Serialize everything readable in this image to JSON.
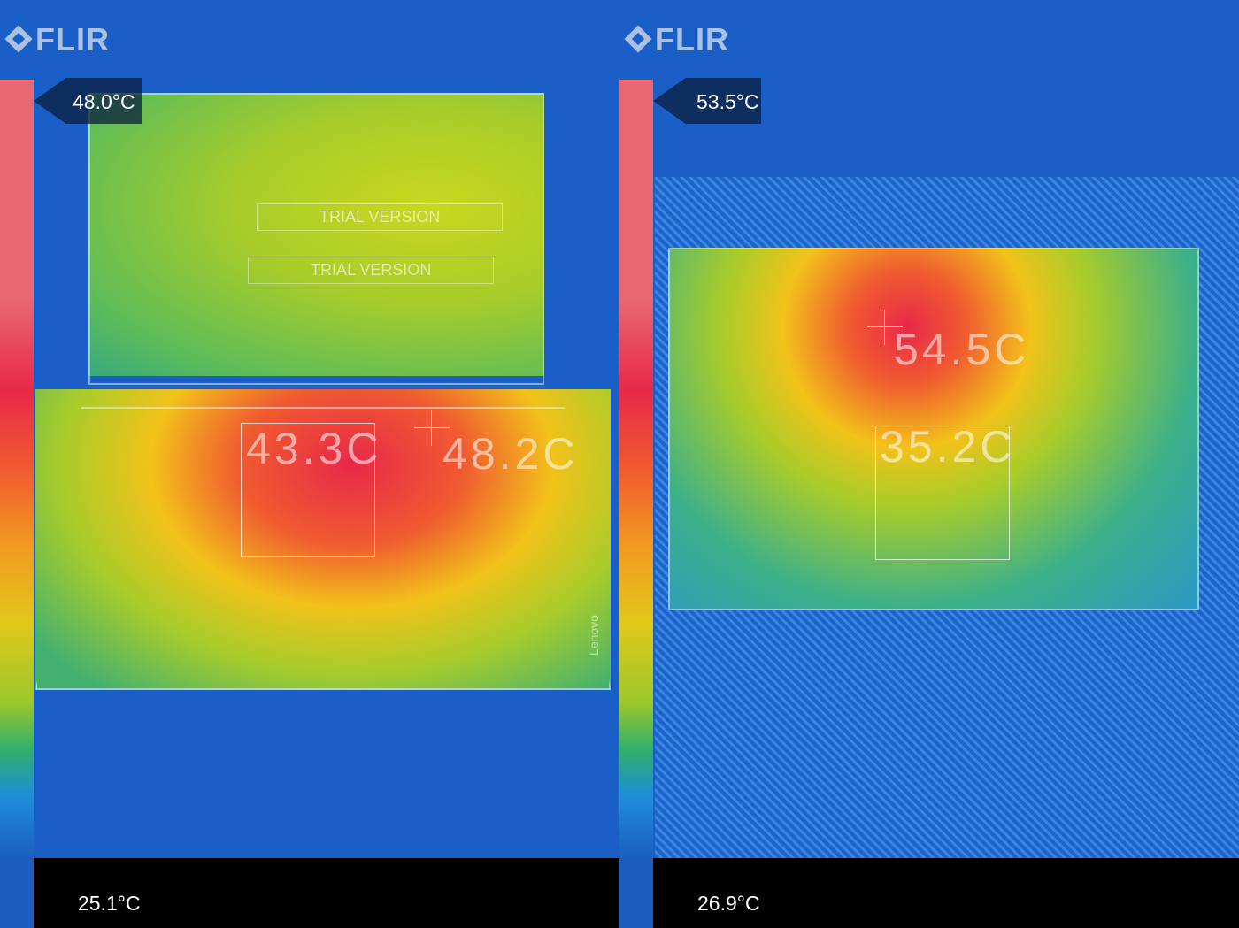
{
  "brand": "FLIR",
  "images": [
    {
      "max_temp": "48.0°C",
      "min_temp": "25.1°C",
      "spots": [
        {
          "label": "43.3C"
        },
        {
          "label": "48.2C"
        }
      ],
      "watermarks": [
        "TRIAL VERSION",
        "TRIAL VERSION"
      ],
      "laptop_brand": "Lenovo"
    },
    {
      "max_temp": "53.5°C",
      "min_temp": "26.9°C",
      "spots": [
        {
          "label": "54.5C"
        },
        {
          "label": "35.2C"
        }
      ]
    }
  ],
  "palette": {
    "hot": "#e8294a",
    "warm": "#f2c21a",
    "mid": "#9cc82a",
    "cool": "#1a5fc8"
  }
}
